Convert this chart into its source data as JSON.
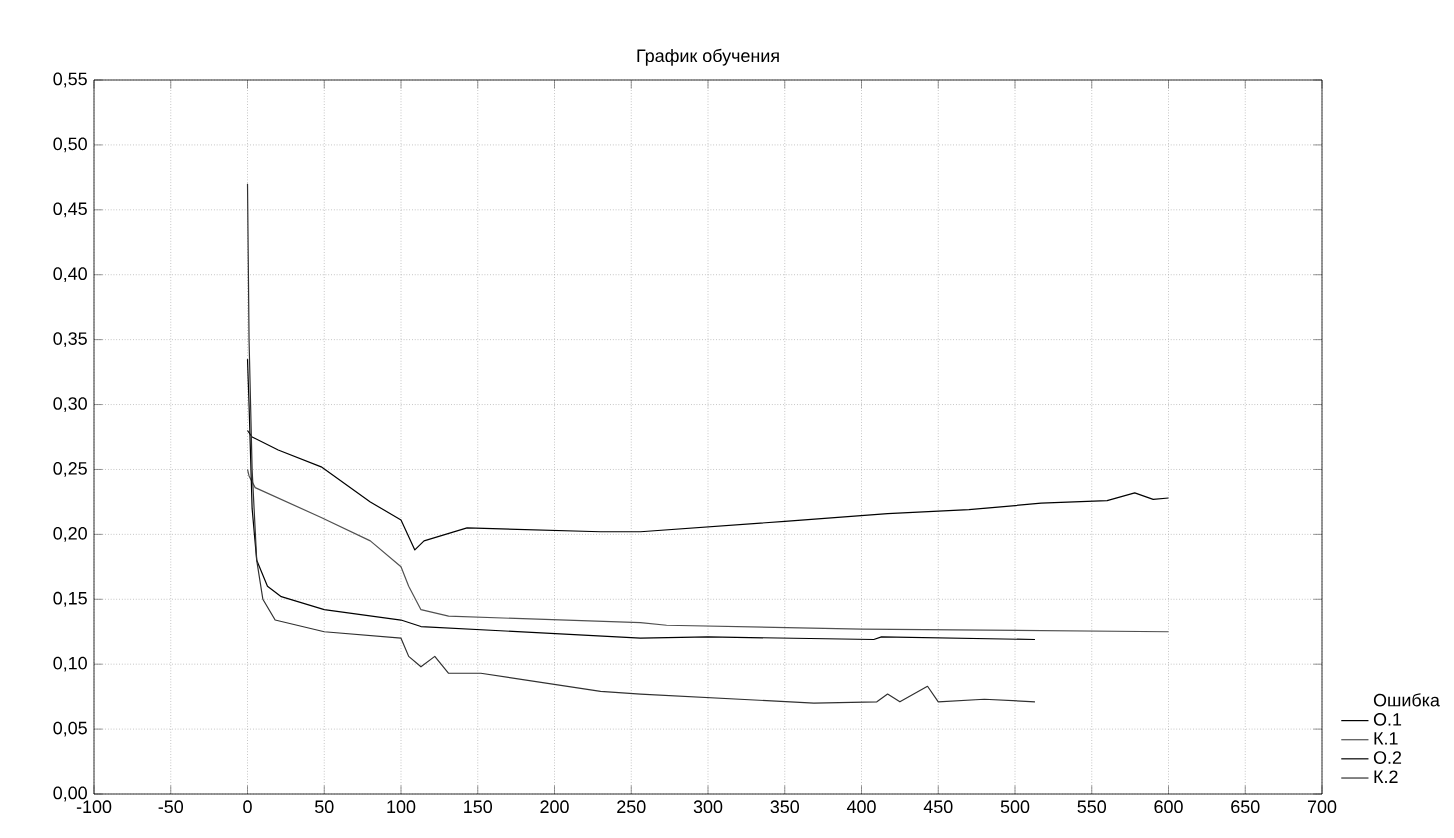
{
  "chart_data": {
    "type": "line",
    "title": "График обучения",
    "legend_title": "Ошибка",
    "xlim": [
      -100,
      700
    ],
    "xticks": [
      -100,
      -50,
      0,
      50,
      100,
      150,
      200,
      250,
      300,
      350,
      400,
      450,
      500,
      550,
      600,
      650,
      700
    ],
    "ylim": [
      0,
      0.55
    ],
    "yticks": [
      {
        "value": 0,
        "label": "0,00"
      },
      {
        "value": 0.05,
        "label": "0,05"
      },
      {
        "value": 0.1,
        "label": "0,10"
      },
      {
        "value": 0.15,
        "label": "0,15"
      },
      {
        "value": 0.2,
        "label": "0,20"
      },
      {
        "value": 0.25,
        "label": "0,25"
      },
      {
        "value": 0.3,
        "label": "0,30"
      },
      {
        "value": 0.35,
        "label": "0,35"
      },
      {
        "value": 0.4,
        "label": "0,40"
      },
      {
        "value": 0.45,
        "label": "0,45"
      },
      {
        "value": 0.5,
        "label": "0,50"
      },
      {
        "value": 0.55,
        "label": "0,55"
      }
    ],
    "grid": true,
    "legend": "right",
    "marker": "none",
    "line_style": "solid",
    "series": [
      {
        "name": "О.1",
        "color": "#000000",
        "x": [
          0,
          3,
          20,
          48,
          80,
          100,
          109,
          115,
          143,
          230,
          256,
          350,
          417,
          470,
          517,
          560,
          578,
          590,
          600
        ],
        "values": [
          0.28,
          0.275,
          0.265,
          0.252,
          0.225,
          0.211,
          0.188,
          0.195,
          0.205,
          0.202,
          0.202,
          0.21,
          0.216,
          0.219,
          0.224,
          0.226,
          0.232,
          0.227,
          0.228
        ]
      },
      {
        "name": "К.1",
        "color": "#505050",
        "x": [
          0,
          1,
          5,
          48,
          80,
          100,
          105,
          113,
          131,
          256,
          273,
          400,
          600
        ],
        "values": [
          0.25,
          0.245,
          0.236,
          0.213,
          0.195,
          0.175,
          0.16,
          0.142,
          0.137,
          0.132,
          0.13,
          0.127,
          0.125
        ]
      },
      {
        "name": "О.2",
        "color": "#000000",
        "x": [
          0,
          1,
          3,
          6,
          13,
          22,
          50,
          100,
          113,
          256,
          300,
          408,
          413,
          513
        ],
        "values": [
          0.335,
          0.3,
          0.22,
          0.18,
          0.16,
          0.152,
          0.142,
          0.134,
          0.129,
          0.12,
          0.121,
          0.119,
          0.121,
          0.119
        ]
      },
      {
        "name": "К.2",
        "color": "#303030",
        "x": [
          0,
          1,
          3,
          6,
          10,
          18,
          50,
          100,
          105,
          113,
          122,
          131,
          152,
          230,
          256,
          369,
          410,
          417,
          425,
          443,
          450,
          480,
          513
        ],
        "values": [
          0.47,
          0.35,
          0.25,
          0.18,
          0.15,
          0.134,
          0.125,
          0.12,
          0.106,
          0.098,
          0.106,
          0.093,
          0.093,
          0.079,
          0.077,
          0.07,
          0.071,
          0.077,
          0.071,
          0.083,
          0.071,
          0.073,
          0.071
        ]
      }
    ]
  }
}
